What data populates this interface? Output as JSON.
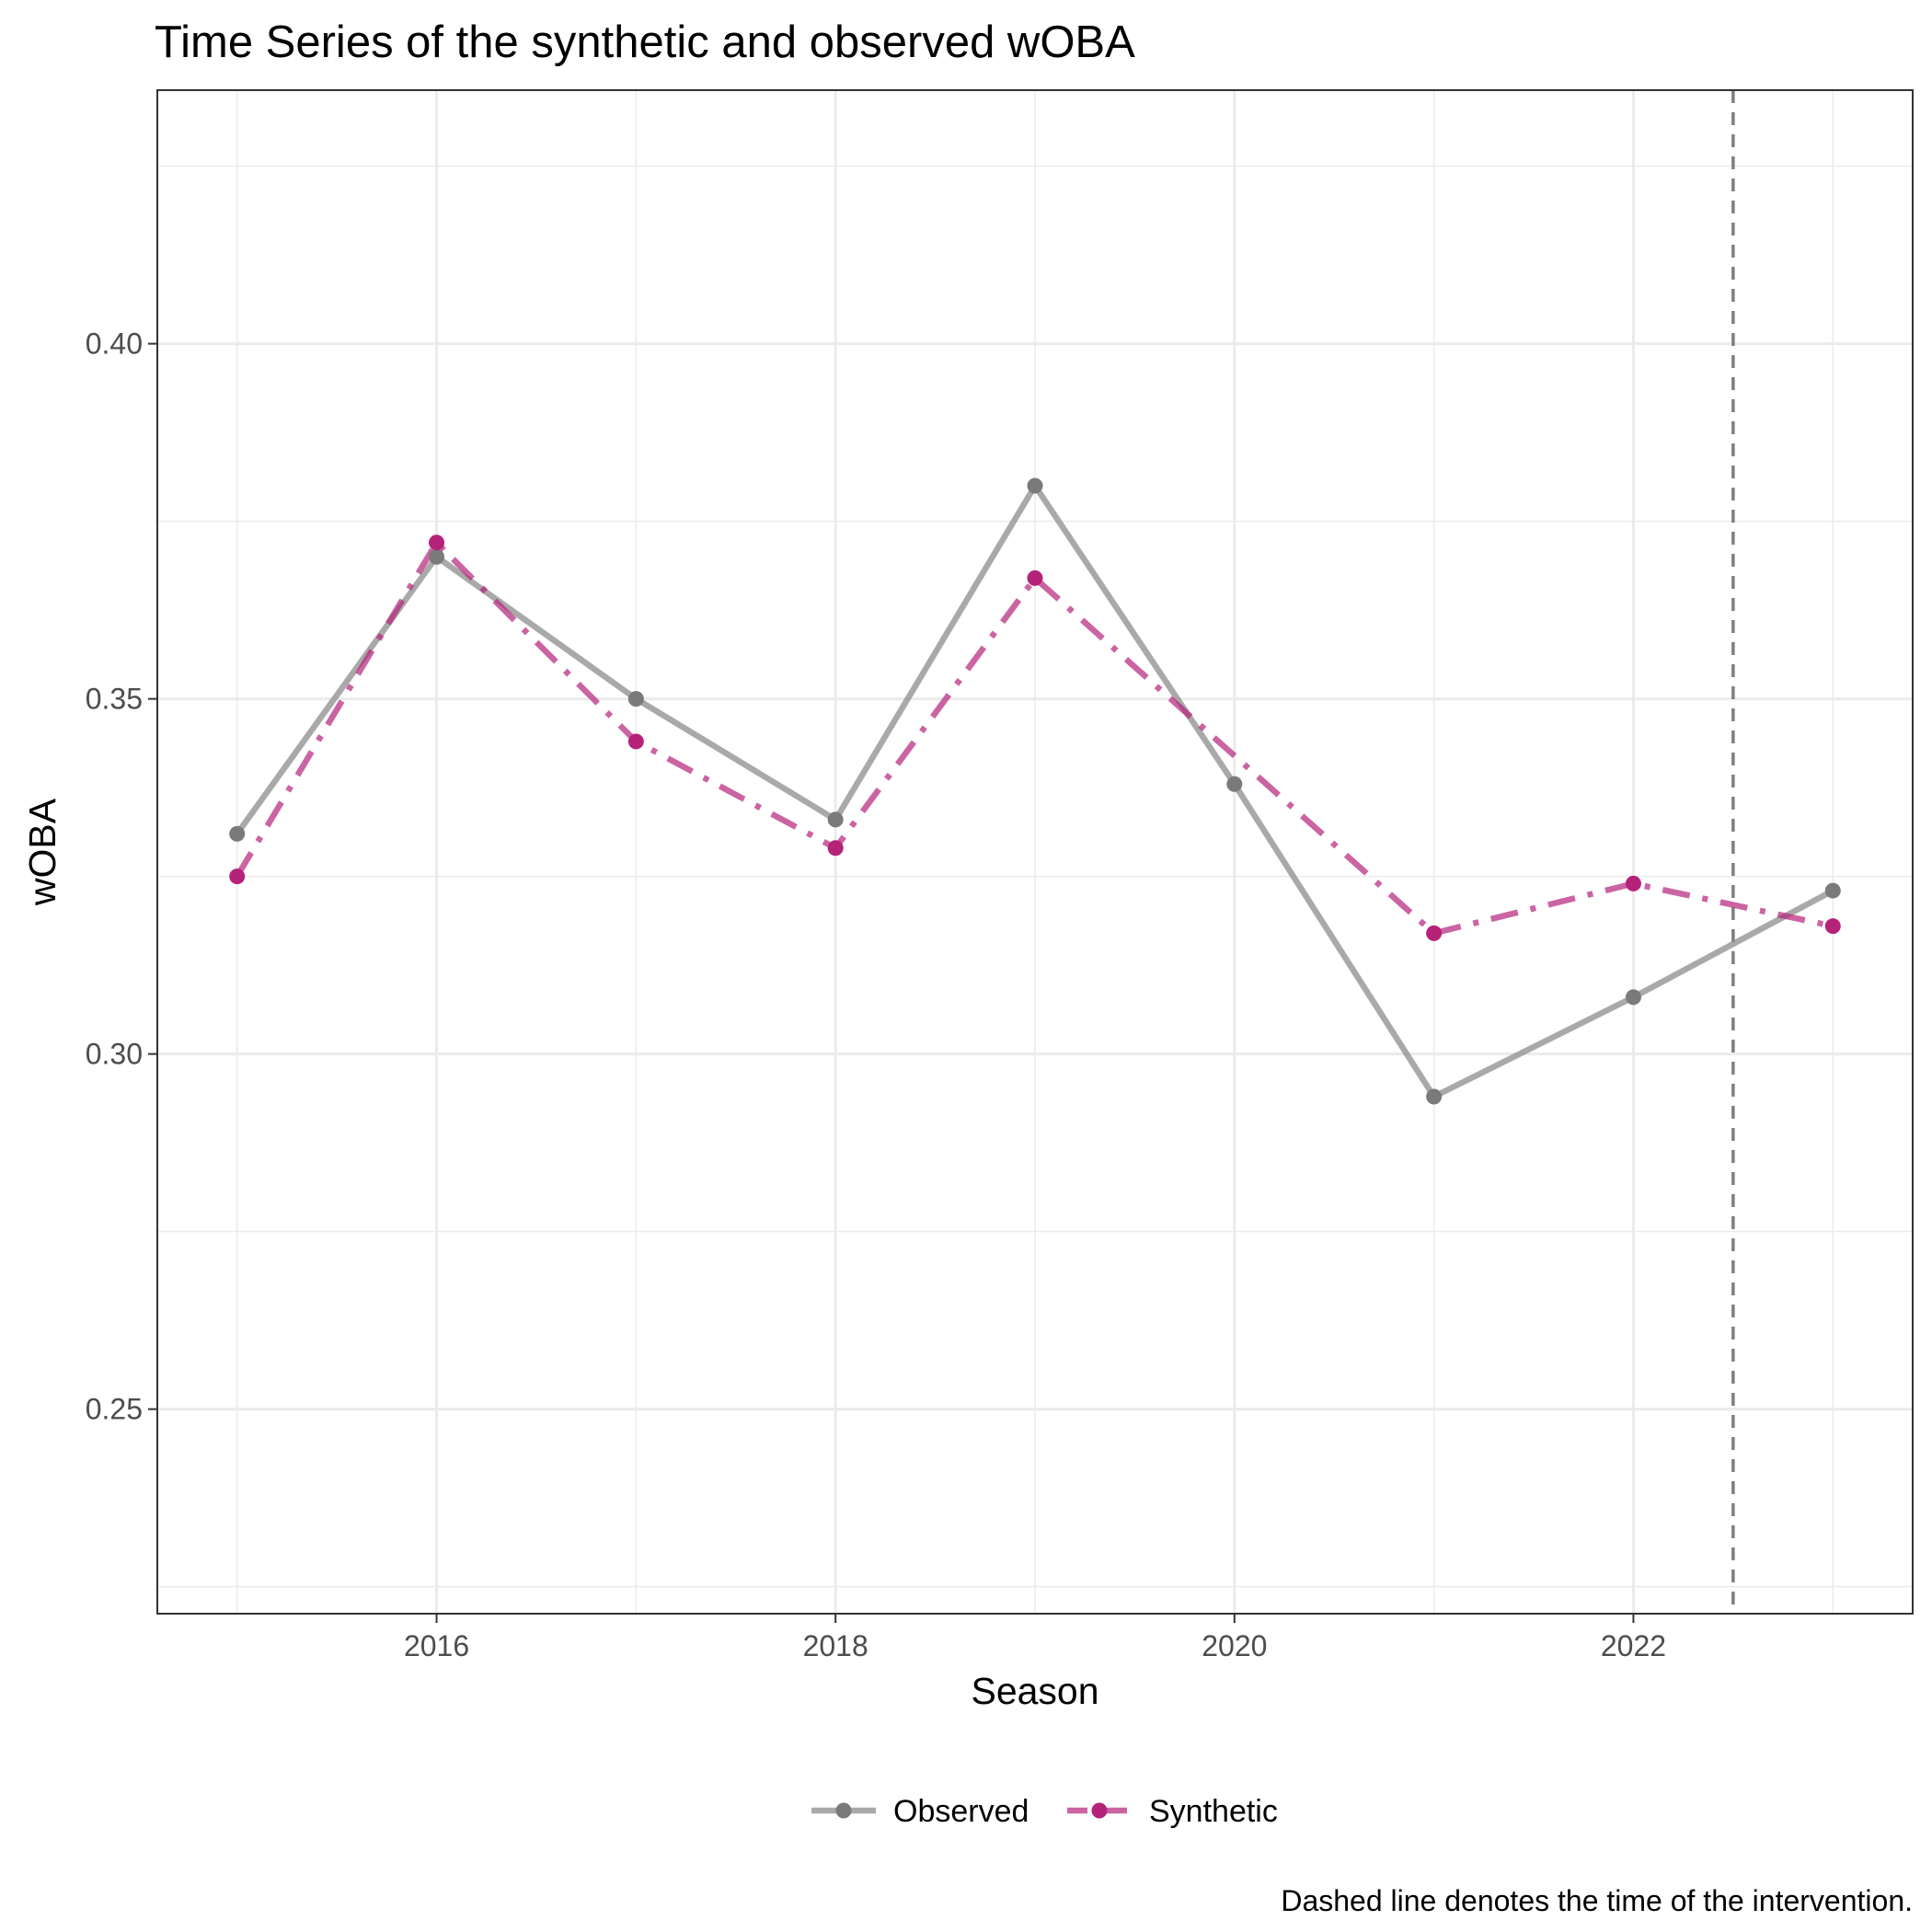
{
  "chart_data": {
    "type": "line",
    "title": "Time Series of the synthetic and observed wOBA",
    "xlabel": "Season",
    "ylabel": "wOBA",
    "caption": "Dashed line denotes the time of the intervention.",
    "x": [
      2015,
      2016,
      2017,
      2018,
      2019,
      2020,
      2021,
      2022,
      2023
    ],
    "xlim": [
      2014.6,
      2023.4
    ],
    "ylim": [
      0.2212,
      0.4357
    ],
    "x_ticks": [
      2016,
      2018,
      2020,
      2022
    ],
    "x_tick_labels": [
      "2016",
      "2018",
      "2020",
      "2022"
    ],
    "y_ticks": [
      0.25,
      0.3,
      0.35,
      0.4
    ],
    "y_tick_labels": [
      "0.25",
      "0.30",
      "0.35",
      "0.40"
    ],
    "grid": true,
    "legend_position": "bottom",
    "intervention_x": 2022.5,
    "series": [
      {
        "name": "Observed",
        "color": "#8c8c8c",
        "line_style": "solid",
        "values": [
          0.331,
          0.37,
          0.35,
          0.333,
          0.38,
          0.338,
          0.294,
          0.308,
          0.323
        ]
      },
      {
        "name": "Synthetic",
        "color": "#b5227a",
        "line_style": "dotdash",
        "values": [
          0.325,
          0.372,
          0.344,
          0.329,
          0.367,
          null,
          0.317,
          0.324,
          0.318
        ]
      }
    ]
  }
}
